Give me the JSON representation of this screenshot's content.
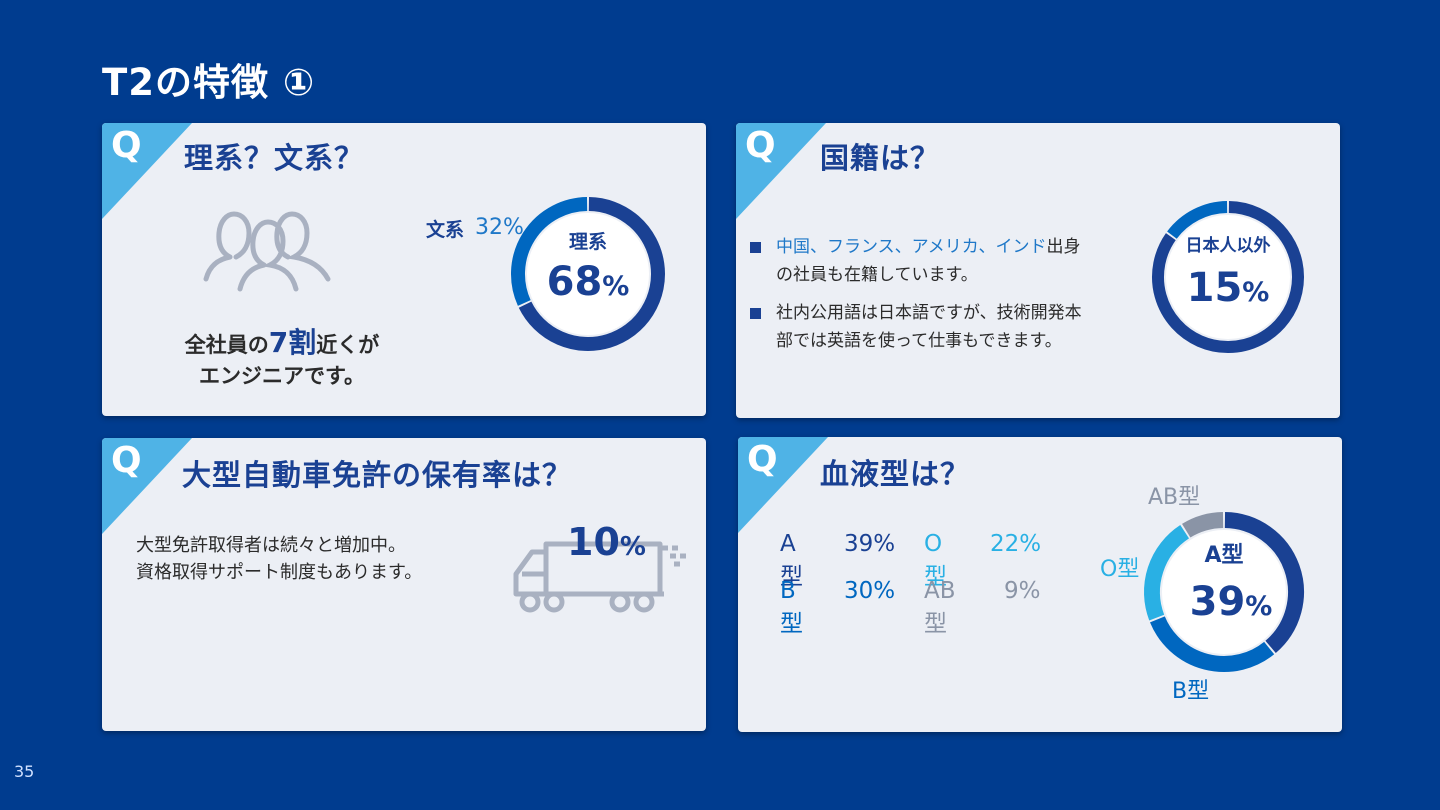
{
  "slide": {
    "title": "T2の特徴 ①",
    "page_number": "35"
  },
  "colors": {
    "background": "#003c8f",
    "card": "#eceff5",
    "accent_dark": "#1a4193",
    "accent_mid": "#0067c0",
    "accent_light": "#29b0e4",
    "gray": "#8a94a6"
  },
  "q_letter": "Q",
  "card1": {
    "title": "理系？文系？",
    "icon": "people-group-icon",
    "stat_prefix": "全社員の",
    "stat_big": "7割",
    "stat_suffix": "近くが",
    "stat_line2": "エンジニアです。",
    "outside_label": "文系",
    "outside_value": "32%",
    "center_label": "理系",
    "center_value": "68",
    "center_unit": "%",
    "chart": {
      "type": "pie",
      "slices": [
        {
          "name": "理系",
          "value": 68,
          "color": "#1a4193"
        },
        {
          "name": "文系",
          "value": 32,
          "color": "#0067c0"
        }
      ]
    }
  },
  "card2": {
    "title": "国籍は？",
    "bullet1_highlight": "中国、フランス、アメリカ、インド",
    "bullet1_rest_a": "出身",
    "bullet1_rest_b": "の社員も在籍しています。",
    "bullet2_a": "社内公用語は日本語ですが、技術開発本",
    "bullet2_b": "部では英語を使って仕事もできます。",
    "center_label": "日本人以外",
    "center_value": "15",
    "center_unit": "%",
    "chart": {
      "type": "pie",
      "slices": [
        {
          "name": "日本人以外",
          "value": 15,
          "color": "#0067c0"
        },
        {
          "name": "日本人",
          "value": 85,
          "color": "#1a4193"
        }
      ]
    }
  },
  "card3": {
    "title": "大型自動車免許の保有率は？",
    "line1": "大型免許取得者は続々と増加中。",
    "line2": "資格取得サポート制度もあります。",
    "icon": "truck-icon",
    "value": "10",
    "unit": "%"
  },
  "card4": {
    "title": "血液型は？",
    "types": [
      {
        "label": "A型",
        "value": "39%",
        "color": "#1a4193"
      },
      {
        "label": "O型",
        "value": "22%",
        "color": "#29b0e4"
      },
      {
        "label": "B型",
        "value": "30%",
        "color": "#0067c0"
      },
      {
        "label": "AB型",
        "value": "9%",
        "color": "#8a94a6"
      }
    ],
    "label_a_center": "A型",
    "center_value": "39",
    "center_unit": "%",
    "label_ab": "AB型",
    "label_o": "O型",
    "label_b": "B型",
    "chart": {
      "type": "pie",
      "slices": [
        {
          "name": "A型",
          "value": 39,
          "color": "#1a4193"
        },
        {
          "name": "B型",
          "value": 30,
          "color": "#0067c0"
        },
        {
          "name": "O型",
          "value": 22,
          "color": "#29b0e4"
        },
        {
          "name": "AB型",
          "value": 9,
          "color": "#8a94a6"
        }
      ]
    }
  }
}
